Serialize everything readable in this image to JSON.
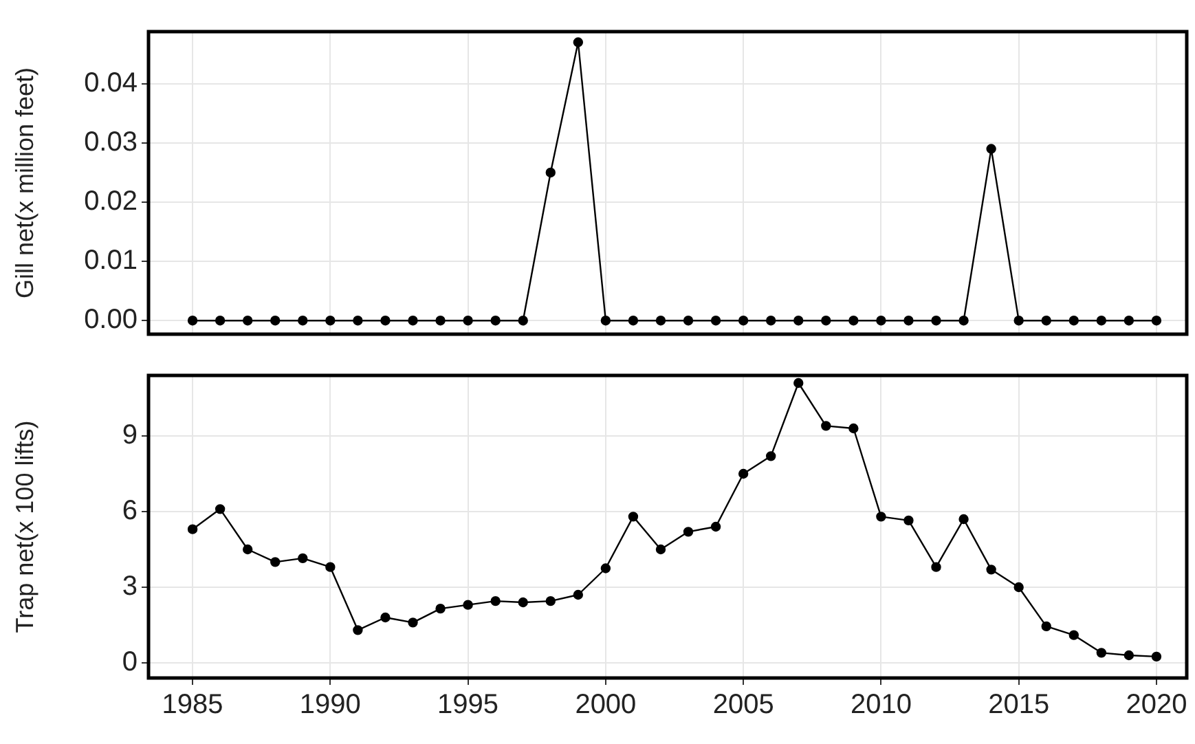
{
  "chart_data": [
    {
      "type": "line",
      "ylabel": "Gill net(x million feet)",
      "x": [
        1985,
        1986,
        1987,
        1988,
        1989,
        1990,
        1991,
        1992,
        1993,
        1994,
        1995,
        1996,
        1997,
        1998,
        1999,
        2000,
        2001,
        2002,
        2003,
        2004,
        2005,
        2006,
        2007,
        2008,
        2009,
        2010,
        2011,
        2012,
        2013,
        2014,
        2015,
        2016,
        2017,
        2018,
        2019,
        2020
      ],
      "series": [
        {
          "color": "#000000",
          "values": [
            0,
            0,
            0,
            0,
            0,
            0,
            0,
            0,
            0,
            0,
            0,
            0,
            0,
            0.025,
            0.047,
            0,
            0,
            0,
            0,
            0,
            0,
            0,
            0,
            0,
            0,
            0,
            0,
            0,
            0,
            0.029,
            0,
            0,
            0,
            0,
            0,
            0
          ]
        }
      ],
      "xlim": [
        1983.4,
        2021.1
      ],
      "xticks": [
        1985,
        1990,
        1995,
        2000,
        2005,
        2010,
        2015,
        2020
      ],
      "ylim": [
        -0.0023,
        0.0488
      ],
      "yticks": [
        {
          "value": 0,
          "label": "0.00"
        },
        {
          "value": 0.01,
          "label": "0.01"
        },
        {
          "value": 0.02,
          "label": "0.02"
        },
        {
          "value": 0.03,
          "label": "0.03"
        },
        {
          "value": 0.04,
          "label": "0.04"
        }
      ],
      "tick_labels": "y",
      "grid": true,
      "marker": "circle",
      "line_style": "solid",
      "legend": false
    },
    {
      "type": "line",
      "ylabel": "Trap net(x 100 lifts)",
      "x": [
        1985,
        1986,
        1987,
        1988,
        1989,
        1990,
        1991,
        1992,
        1993,
        1994,
        1995,
        1996,
        1997,
        1998,
        1999,
        2000,
        2001,
        2002,
        2003,
        2004,
        2005,
        2006,
        2007,
        2008,
        2009,
        2010,
        2011,
        2012,
        2013,
        2014,
        2015,
        2016,
        2017,
        2018,
        2019,
        2020
      ],
      "series": [
        {
          "color": "#000000",
          "values": [
            5.3,
            6.1,
            4.5,
            4.0,
            4.15,
            3.8,
            1.3,
            1.8,
            1.6,
            2.15,
            2.3,
            2.45,
            2.4,
            2.45,
            2.7,
            3.75,
            5.8,
            4.5,
            5.2,
            5.4,
            7.5,
            8.2,
            11.1,
            9.4,
            9.3,
            5.8,
            5.65,
            3.8,
            5.7,
            3.7,
            3.0,
            1.45,
            1.1,
            0.4,
            0.3,
            0.25
          ]
        }
      ],
      "xlim": [
        1983.4,
        2021.1
      ],
      "xticks": [
        1985,
        1990,
        1995,
        2000,
        2005,
        2010,
        2015,
        2020
      ],
      "ylim": [
        -0.6,
        11.4
      ],
      "yticks": [
        0,
        3,
        6,
        9
      ],
      "grid": true,
      "marker": "circle",
      "line_style": "solid",
      "legend": false
    }
  ]
}
